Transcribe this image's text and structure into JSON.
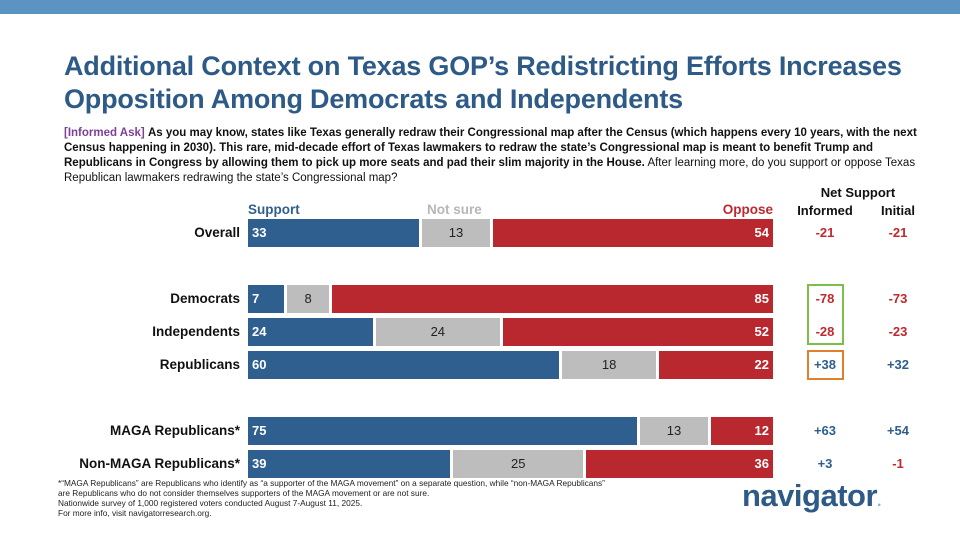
{
  "title_line1": "Additional Context on Texas GOP’s Redistricting Efforts Increases",
  "title_line2": "Opposition Among Democrats and Independents",
  "question": {
    "tag": "[Informed Ask]",
    "bold_text": "As you may know, states like Texas generally redraw their Congressional map after the Census (which happens every 10 years, with the next Census happening in 2030). This rare, mid-decade effort of Texas lawmakers to redraw the state’s Congressional map is meant to benefit Trump and Republicans in Congress by allowing them to pick up more seats and pad their slim majority in the House.",
    "plain_text": "After learning more, do you support or oppose Texas Republican lawmakers redrawing the state’s Congressional map?"
  },
  "net_support": {
    "title": "Net Support",
    "informed_label": "Informed",
    "initial_label": "Initial"
  },
  "colors": {
    "support": "#2f5f8f",
    "not_sure": "#bdbdbd",
    "oppose": "#b8282e",
    "green_box": "#7cbf4a",
    "orange_box": "#e07f2e"
  },
  "chart_data": {
    "type": "bar",
    "orientation": "horizontal-stacked",
    "categories": [
      "Overall",
      "Democrats",
      "Independents",
      "Republicans",
      "MAGA Republicans*",
      "Non-MAGA Republicans*"
    ],
    "series": [
      {
        "name": "Support",
        "values": [
          33,
          7,
          24,
          60,
          75,
          39
        ]
      },
      {
        "name": "Not sure",
        "values": [
          13,
          8,
          24,
          18,
          13,
          25
        ]
      },
      {
        "name": "Oppose",
        "values": [
          54,
          85,
          52,
          22,
          12,
          36
        ]
      }
    ],
    "net_informed": [
      "-21",
      "-78",
      "-28",
      "+38",
      "+63",
      "+3"
    ],
    "net_initial": [
      "-21",
      "-73",
      "-23",
      "+32",
      "+54",
      "-1"
    ],
    "highlight": {
      "green": [
        "Democrats",
        "Independents"
      ],
      "orange": [
        "Republicans"
      ]
    },
    "xlim": [
      0,
      100
    ]
  },
  "footnote": [
    "*“MAGA Republicans” are Republicans who identify as “a supporter of the MAGA movement” on a separate question, while “non-MAGA Republicans” are Republicans who do not consider themselves supporters of the MAGA movement or are not sure.",
    "Nationwide survey of 1,000 registered voters conducted August 7-August 11, 2025.",
    "For more info, visit navigatorresearch.org."
  ],
  "logo": {
    "text": "navigator",
    "dot": "."
  }
}
